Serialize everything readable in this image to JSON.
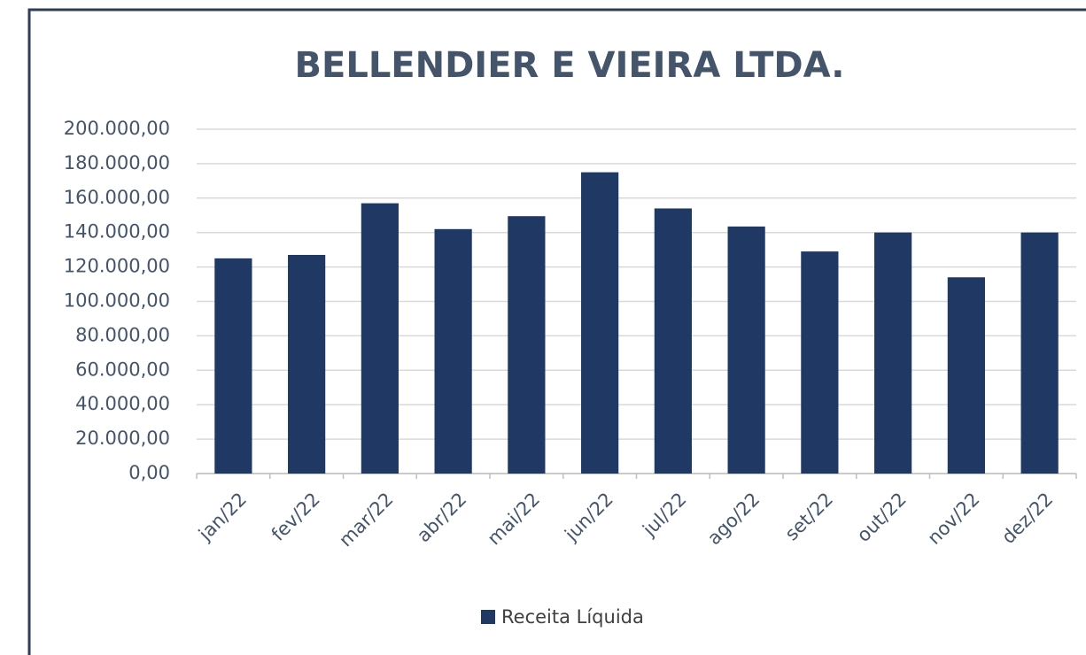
{
  "chart_data": {
    "type": "bar",
    "title": "BELLENDIER E VIEIRA LTDA.",
    "categories": [
      "jan/22",
      "fev/22",
      "mar/22",
      "abr/22",
      "mai/22",
      "jun/22",
      "jul/22",
      "ago/22",
      "set/22",
      "out/22",
      "nov/22",
      "dez/22"
    ],
    "series": [
      {
        "name": "Receita Líquida",
        "color": "#203864",
        "values": [
          125000,
          127000,
          157000,
          142000,
          149500,
          175000,
          154000,
          143500,
          129000,
          140000,
          114000,
          140000
        ]
      }
    ],
    "ylim": [
      0,
      200000
    ],
    "yticks": [
      {
        "value": 0,
        "label": "0,00"
      },
      {
        "value": 20000,
        "label": "20.000,00"
      },
      {
        "value": 40000,
        "label": "40.000,00"
      },
      {
        "value": 60000,
        "label": "60.000,00"
      },
      {
        "value": 80000,
        "label": "80.000,00"
      },
      {
        "value": 100000,
        "label": "100.000,00"
      },
      {
        "value": 120000,
        "label": "120.000,00"
      },
      {
        "value": 140000,
        "label": "140.000,00"
      },
      {
        "value": 160000,
        "label": "160.000,00"
      },
      {
        "value": 180000,
        "label": "180.000,00"
      },
      {
        "value": 200000,
        "label": "200.000,00"
      }
    ],
    "grid": true,
    "legend": "bottom"
  }
}
